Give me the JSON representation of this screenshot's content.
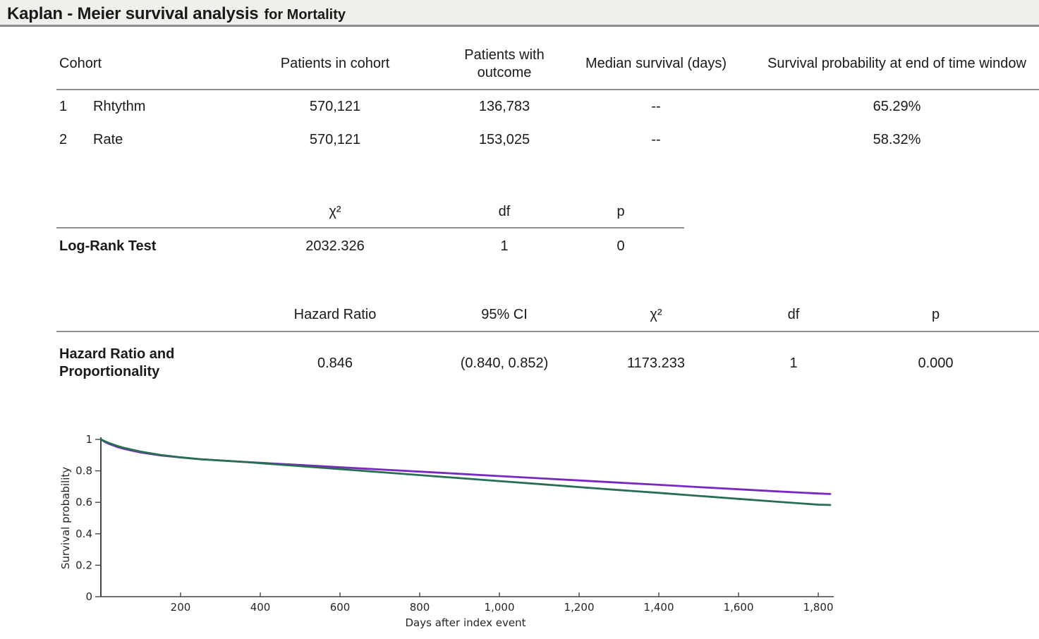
{
  "title": {
    "main": "Kaplan - Meier survival analysis",
    "context": "for Mortality"
  },
  "cohort_table": {
    "headers": {
      "cohort": "Cohort",
      "patients": "Patients in cohort",
      "outcome": "Patients with outcome",
      "median": "Median survival (days)",
      "survival": "Survival probability at end of time window"
    },
    "rows": [
      {
        "num": "1",
        "name": "Rhtythm",
        "patients": "570,121",
        "outcome": "136,783",
        "median": "--",
        "survival": "65.29%"
      },
      {
        "num": "2",
        "name": "Rate",
        "patients": "570,121",
        "outcome": "153,025",
        "median": "--",
        "survival": "58.32%"
      }
    ]
  },
  "logrank_table": {
    "label": "Log-Rank Test",
    "headers": {
      "chi2": "χ²",
      "df": "df",
      "p": "p"
    },
    "values": {
      "chi2": "2032.326",
      "df": "1",
      "p": "0"
    }
  },
  "hazard_table": {
    "label": "Hazard Ratio and Proportionality",
    "headers": {
      "hr": "Hazard Ratio",
      "ci": "95% CI",
      "chi2": "χ²",
      "df": "df",
      "p": "p"
    },
    "values": {
      "hr": "0.846",
      "ci": "(0.840, 0.852)",
      "chi2": "1173.233",
      "df": "1",
      "p": "0.000"
    }
  },
  "chart_data": {
    "type": "line",
    "title": "",
    "xlabel": "Days after index event",
    "ylabel": "Survival probability",
    "xlim": [
      0,
      1830
    ],
    "ylim": [
      0,
      1
    ],
    "grid": false,
    "legend": "none",
    "x_tick_values": [
      200,
      400,
      600,
      800,
      1000,
      1200,
      1400,
      1600,
      1800
    ],
    "x_tick_labels": [
      "200",
      "400",
      "600",
      "800",
      "1,000",
      "1,200",
      "1,400",
      "1,600",
      "1,800"
    ],
    "y_tick_values": [
      0,
      0.2,
      0.4,
      0.6,
      0.8,
      1
    ],
    "y_tick_labels": [
      "0",
      "0.2",
      "0.4",
      "0.6",
      "0.8",
      "1"
    ],
    "series": [
      {
        "name": "Rhtythm",
        "color": "#7a28c2",
        "end_value_pct": "65.29%",
        "x": [
          0,
          10,
          20,
          40,
          60,
          80,
          100,
          150,
          200,
          250,
          300,
          365,
          400,
          500,
          600,
          700,
          800,
          900,
          1000,
          1100,
          1200,
          1300,
          1400,
          1500,
          1600,
          1700,
          1800,
          1830
        ],
        "y": [
          1.0,
          0.984,
          0.972,
          0.953,
          0.939,
          0.928,
          0.917,
          0.898,
          0.885,
          0.874,
          0.866,
          0.856,
          0.851,
          0.837,
          0.823,
          0.809,
          0.795,
          0.781,
          0.767,
          0.753,
          0.739,
          0.725,
          0.711,
          0.697,
          0.683,
          0.669,
          0.656,
          0.653
        ]
      },
      {
        "name": "Rate",
        "color": "#286e50",
        "end_value_pct": "58.32%",
        "x": [
          0,
          10,
          20,
          40,
          60,
          80,
          100,
          150,
          200,
          250,
          300,
          365,
          400,
          500,
          600,
          700,
          800,
          900,
          1000,
          1100,
          1200,
          1300,
          1400,
          1500,
          1600,
          1700,
          1800,
          1830
        ],
        "y": [
          1.0,
          0.988,
          0.977,
          0.959,
          0.945,
          0.933,
          0.922,
          0.901,
          0.886,
          0.874,
          0.866,
          0.856,
          0.849,
          0.83,
          0.811,
          0.792,
          0.773,
          0.754,
          0.735,
          0.716,
          0.697,
          0.678,
          0.66,
          0.641,
          0.622,
          0.603,
          0.585,
          0.583
        ]
      }
    ]
  }
}
